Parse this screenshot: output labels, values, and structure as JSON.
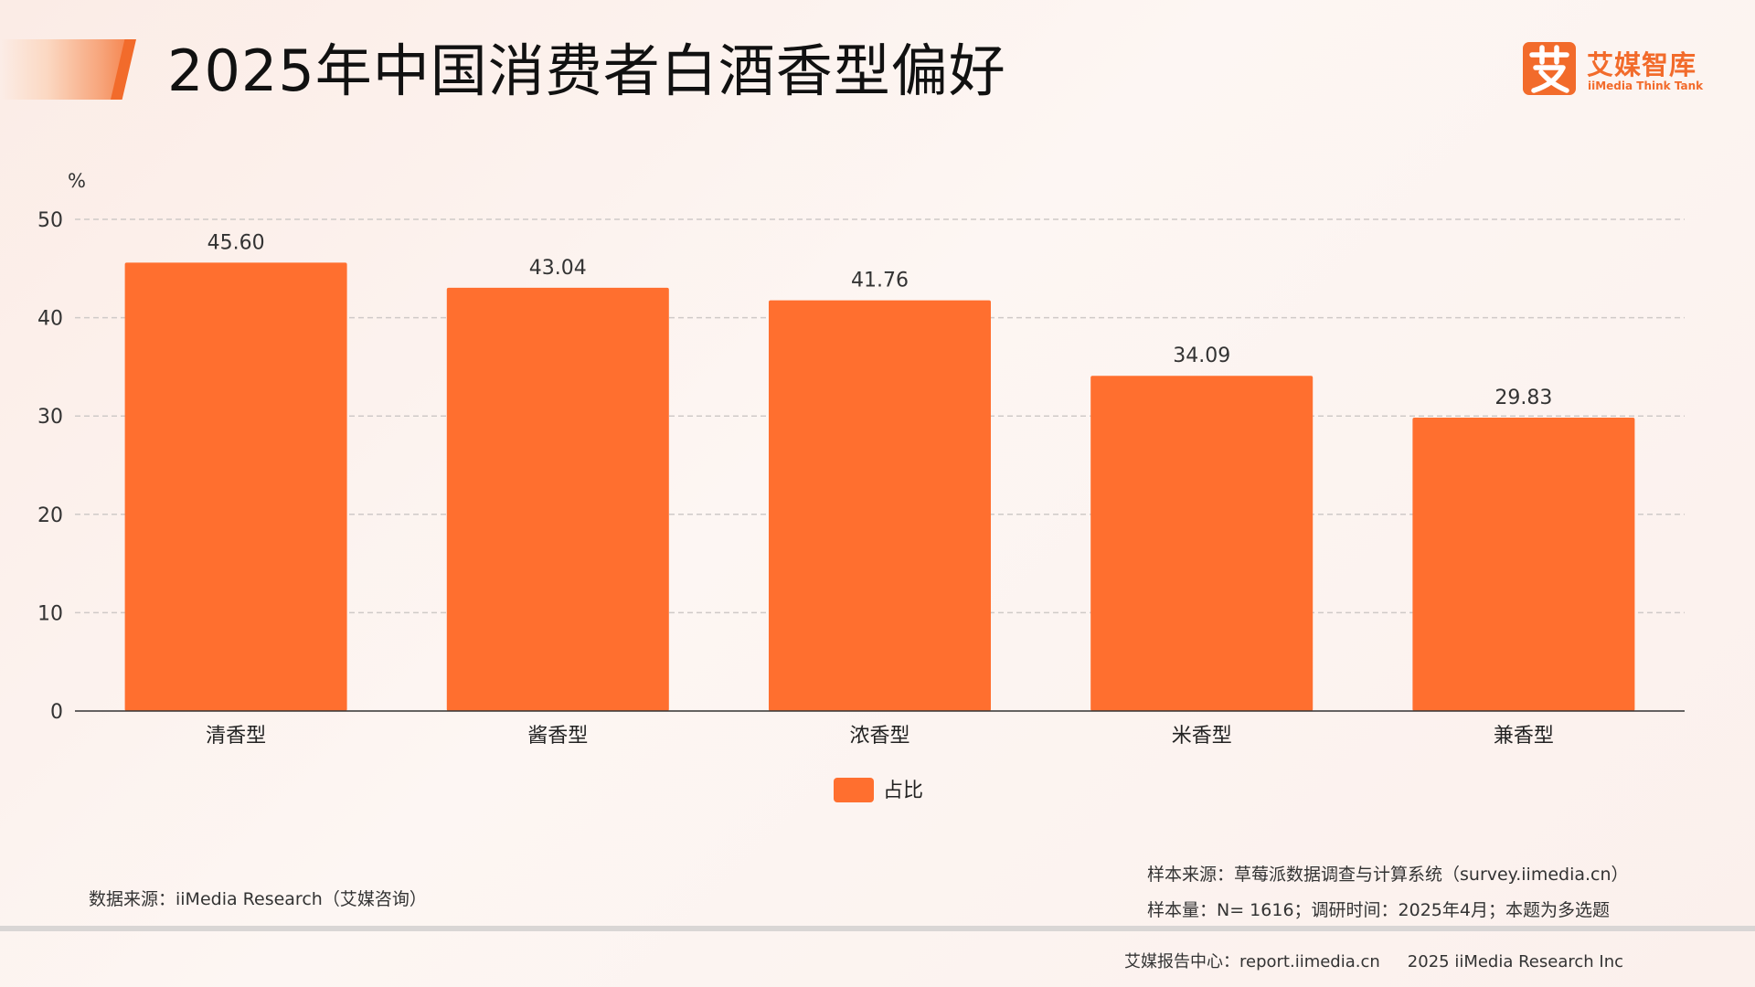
{
  "header": {
    "title": "2025年中国消费者白酒香型偏好"
  },
  "logo": {
    "mark_text": "艾",
    "name_cn": "艾媒智库",
    "name_en": "iiMedia Think Tank"
  },
  "chart_data": {
    "type": "bar",
    "title": "",
    "ylabel": "%",
    "xlabel": "",
    "categories": [
      "清香型",
      "酱香型",
      "浓香型",
      "米香型",
      "兼香型"
    ],
    "series": [
      {
        "name": "占比",
        "values": [
          45.6,
          43.04,
          41.76,
          34.09,
          29.83
        ]
      }
    ],
    "value_labels": [
      "45.60",
      "43.04",
      "41.76",
      "34.09",
      "29.83"
    ],
    "yticks": [
      "0",
      "10",
      "20",
      "30",
      "40",
      "50"
    ],
    "ylim": [
      0,
      50
    ],
    "grid": true,
    "legend_position": "bottom-center",
    "bar_color": "#ff6f2f"
  },
  "sources": {
    "data_source": "数据来源：iiMedia Research（艾媒咨询）",
    "sample_source": "样本来源：草莓派数据调查与计算系统（survey.iimedia.cn）",
    "sample_size": "样本量：N= 1616；调研时间：2025年4月；本题为多选题"
  },
  "footer": {
    "report_center": "艾媒报告中心：report.iimedia.cn",
    "copyright": "2025 iiMedia Research Inc"
  },
  "colors": {
    "accent": "#f26b2b",
    "bar": "#ff6f2f",
    "grid": "#cfcac8",
    "axis": "#333333"
  }
}
